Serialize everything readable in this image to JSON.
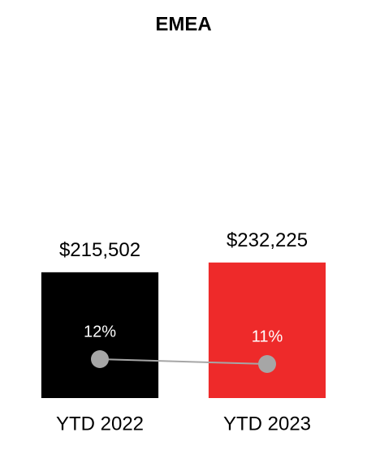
{
  "chart_data": {
    "type": "bar",
    "title": "EMEA",
    "categories": [
      "YTD 2022",
      "YTD 2023"
    ],
    "series": [
      {
        "type": "bar",
        "colors": [
          "#000000",
          "#ee2a2a"
        ],
        "values": [
          215502,
          232225
        ],
        "value_labels": [
          "$215,502",
          "$232,225"
        ]
      },
      {
        "type": "line",
        "axis": "y2",
        "color": "#a6a6a6",
        "values": [
          12,
          11
        ],
        "value_labels": [
          "12%",
          "11%"
        ]
      }
    ],
    "ylim": [
      0,
      500000
    ],
    "y2lim": [
      4,
      64
    ],
    "grid": false
  }
}
